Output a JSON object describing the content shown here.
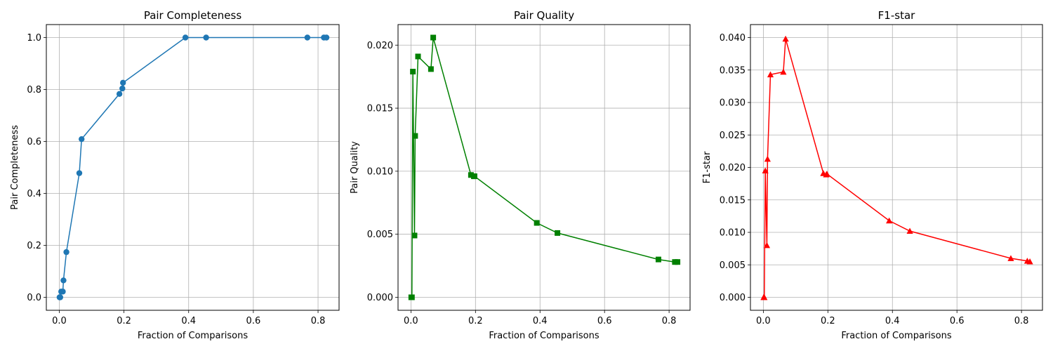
{
  "chart_data": [
    {
      "type": "line",
      "title": "Pair Completeness",
      "xlabel": "Fraction of Comparisons",
      "ylabel": "Pair Completeness",
      "xlim": [
        -0.04,
        0.865
      ],
      "ylim": [
        -0.05,
        1.05
      ],
      "xticks": [
        0.0,
        0.2,
        0.4,
        0.6,
        0.8
      ],
      "xtick_labels": [
        "0.0",
        "0.2",
        "0.4",
        "0.6",
        "0.8"
      ],
      "yticks": [
        0.0,
        0.2,
        0.4,
        0.6,
        0.8,
        1.0
      ],
      "ytick_labels": [
        "0.0",
        "0.2",
        "0.4",
        "0.6",
        "0.8",
        "1.0"
      ],
      "grid": true,
      "color": "#1f77b4",
      "marker": "circle",
      "x": [
        0.001,
        0.003,
        0.006,
        0.011,
        0.013,
        0.022,
        0.062,
        0.069,
        0.186,
        0.195,
        0.197,
        0.39,
        0.454,
        0.767,
        0.818,
        0.826
      ],
      "y": [
        0.0,
        0.0,
        0.022,
        0.022,
        0.065,
        0.174,
        0.478,
        0.609,
        0.783,
        0.804,
        0.826,
        1.0,
        1.0,
        1.0,
        1.0,
        1.0
      ]
    },
    {
      "type": "line",
      "title": "Pair Quality",
      "xlabel": "Fraction of Comparisons",
      "ylabel": "Pair Quality",
      "xlim": [
        -0.04,
        0.865
      ],
      "ylim": [
        -0.00103,
        0.02163
      ],
      "xticks": [
        0.0,
        0.2,
        0.4,
        0.6,
        0.8
      ],
      "xtick_labels": [
        "0.0",
        "0.2",
        "0.4",
        "0.6",
        "0.8"
      ],
      "yticks": [
        0.0,
        0.005,
        0.01,
        0.015,
        0.02
      ],
      "ytick_labels": [
        "0.000",
        "0.005",
        "0.010",
        "0.015",
        "0.020"
      ],
      "grid": true,
      "color": "#008000",
      "marker": "square",
      "x": [
        0.001,
        0.003,
        0.006,
        0.011,
        0.013,
        0.022,
        0.062,
        0.069,
        0.186,
        0.195,
        0.197,
        0.39,
        0.454,
        0.767,
        0.818,
        0.826
      ],
      "y": [
        0.0,
        0.0,
        0.0179,
        0.0049,
        0.0128,
        0.0191,
        0.0181,
        0.0206,
        0.0097,
        0.0096,
        0.0096,
        0.0059,
        0.0051,
        0.003,
        0.0028,
        0.0028
      ]
    },
    {
      "type": "line",
      "title": "F1-star",
      "xlabel": "Fraction of Comparisons",
      "ylabel": "F1-star",
      "xlim": [
        -0.04,
        0.865
      ],
      "ylim": [
        -0.002,
        0.042
      ],
      "xticks": [
        0.0,
        0.2,
        0.4,
        0.6,
        0.8
      ],
      "xtick_labels": [
        "0.0",
        "0.2",
        "0.4",
        "0.6",
        "0.8"
      ],
      "yticks": [
        0.0,
        0.005,
        0.01,
        0.015,
        0.02,
        0.025,
        0.03,
        0.035,
        0.04
      ],
      "ytick_labels": [
        "0.000",
        "0.005",
        "0.010",
        "0.015",
        "0.020",
        "0.025",
        "0.030",
        "0.035",
        "0.040"
      ],
      "grid": true,
      "color": "#ff0000",
      "marker": "triangle",
      "x": [
        0.001,
        0.003,
        0.006,
        0.011,
        0.013,
        0.022,
        0.062,
        0.069,
        0.186,
        0.195,
        0.197,
        0.39,
        0.454,
        0.767,
        0.818,
        0.826
      ],
      "y": [
        0.0,
        0.0,
        0.0195,
        0.008,
        0.0213,
        0.0343,
        0.0347,
        0.0398,
        0.0191,
        0.0189,
        0.019,
        0.0118,
        0.0102,
        0.006,
        0.0056,
        0.0055
      ]
    }
  ]
}
